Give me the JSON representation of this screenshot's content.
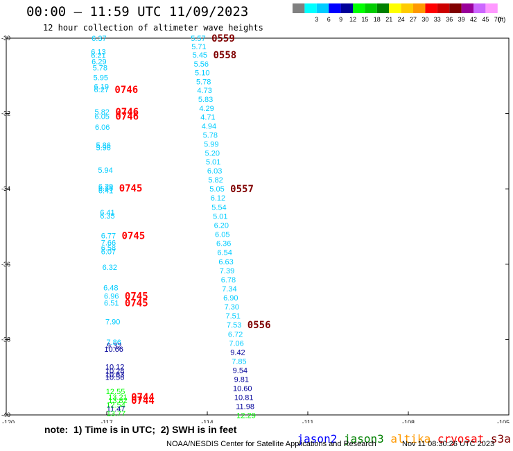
{
  "title": "00:00 – 11:59 UTC 11/09/2023",
  "subtitle": "12 hour collection of altimeter wave heights",
  "legend": {
    "unit": "(ft)",
    "bins": [
      {
        "color": "#808080",
        "label": ""
      },
      {
        "color": "#00ffff",
        "label": "3"
      },
      {
        "color": "#00ccff",
        "label": "6"
      },
      {
        "color": "#0000ff",
        "label": "9"
      },
      {
        "color": "#000099",
        "label": "12"
      },
      {
        "color": "#00ff00",
        "label": "15"
      },
      {
        "color": "#00cc00",
        "label": "18"
      },
      {
        "color": "#008000",
        "label": "21"
      },
      {
        "color": "#ffff00",
        "label": "24"
      },
      {
        "color": "#ffcc00",
        "label": "27"
      },
      {
        "color": "#ff9900",
        "label": "30"
      },
      {
        "color": "#ff0000",
        "label": "33"
      },
      {
        "color": "#cc0000",
        "label": "36"
      },
      {
        "color": "#800000",
        "label": "39"
      },
      {
        "color": "#990099",
        "label": "42"
      },
      {
        "color": "#cc66ff",
        "label": "45"
      },
      {
        "color": "#ff99ff",
        "label": "70"
      }
    ]
  },
  "note": "note:  1) Time is in UTC;  2) SWH is in feet",
  "satellites": [
    {
      "name": "jason2",
      "color": "#0000ff"
    },
    {
      "name": "jason3",
      "color": "#008000"
    },
    {
      "name": "altika",
      "color": "#ff9900"
    },
    {
      "name": "cryosat",
      "color": "#ff0000"
    },
    {
      "name": "s3a",
      "color": "#800000"
    }
  ],
  "credit": "NOAA/NESDIS Center for Satellite Applications and Research",
  "timestamp": "Nov 11 08:30:26 UTC 2023",
  "chart_data": {
    "type": "scatter",
    "xlim": [
      -120,
      -105
    ],
    "ylim": [
      -40,
      -30
    ],
    "x_ticks": [
      "-120",
      "-117",
      "-114",
      "-111",
      "-108",
      "-105"
    ],
    "y_ticks": [
      "-30",
      "-32",
      "-34",
      "-36",
      "-38",
      "-40"
    ],
    "points": [
      {
        "x": -117.23,
        "y": -30.0,
        "label": "6.37",
        "color": "#00ccff"
      },
      {
        "x": -117.25,
        "y": -30.36,
        "label": "6.13",
        "color": "#00ccff"
      },
      {
        "x": -117.25,
        "y": -30.45,
        "label": "6.21",
        "color": "#00ccff"
      },
      {
        "x": -117.23,
        "y": -30.62,
        "label": "6.29",
        "color": "#00ccff"
      },
      {
        "x": -117.2,
        "y": -30.78,
        "label": "5.78",
        "color": "#00ccff"
      },
      {
        "x": -117.18,
        "y": -31.04,
        "label": "5.95",
        "color": "#00ccff"
      },
      {
        "x": -117.16,
        "y": -31.28,
        "label": "6.19",
        "color": "#00ccff"
      },
      {
        "x": -117.16,
        "y": -31.36,
        "label": "6.27",
        "color": "#00ccff"
      },
      {
        "x": -117.14,
        "y": -31.95,
        "label": "5.82",
        "color": "#00ccff"
      },
      {
        "x": -117.14,
        "y": -32.07,
        "label": "6.05",
        "color": "#00ccff"
      },
      {
        "x": -117.13,
        "y": -32.36,
        "label": "6.06",
        "color": "#00ccff"
      },
      {
        "x": -117.1,
        "y": -32.84,
        "label": "5.86",
        "color": "#00ccff"
      },
      {
        "x": -117.1,
        "y": -32.9,
        "label": "5.96",
        "color": "#00ccff"
      },
      {
        "x": -117.04,
        "y": -33.5,
        "label": "5.94",
        "color": "#00ccff"
      },
      {
        "x": -117.03,
        "y": -33.93,
        "label": "6.29",
        "color": "#00ccff"
      },
      {
        "x": -117.03,
        "y": -33.98,
        "label": "6.36",
        "color": "#00ccff"
      },
      {
        "x": -117.03,
        "y": -34.04,
        "label": "6.41",
        "color": "#00ccff"
      },
      {
        "x": -116.98,
        "y": -34.62,
        "label": "6.41",
        "color": "#00ccff"
      },
      {
        "x": -116.98,
        "y": -34.71,
        "label": "6.35",
        "color": "#00ccff"
      },
      {
        "x": -116.95,
        "y": -35.24,
        "label": "6.77",
        "color": "#00ccff"
      },
      {
        "x": -116.95,
        "y": -35.42,
        "label": "7.66",
        "color": "#00ccff"
      },
      {
        "x": -116.95,
        "y": -35.56,
        "label": "6.58",
        "color": "#00ccff"
      },
      {
        "x": -116.95,
        "y": -35.66,
        "label": "6.07",
        "color": "#00ccff"
      },
      {
        "x": -116.91,
        "y": -36.08,
        "label": "6.32",
        "color": "#00ccff"
      },
      {
        "x": -116.88,
        "y": -36.62,
        "label": "6.48",
        "color": "#00ccff"
      },
      {
        "x": -116.86,
        "y": -36.84,
        "label": "6.96",
        "color": "#00ccff"
      },
      {
        "x": -116.86,
        "y": -37.03,
        "label": "6.51",
        "color": "#00ccff"
      },
      {
        "x": -116.82,
        "y": -37.52,
        "label": "7.90",
        "color": "#00ccff"
      },
      {
        "x": -116.79,
        "y": -38.07,
        "label": "7.86",
        "color": "#00ccff"
      },
      {
        "x": -116.78,
        "y": -38.16,
        "label": "9.32",
        "color": "#000099"
      },
      {
        "x": -116.79,
        "y": -38.25,
        "label": "10.66",
        "color": "#000099"
      },
      {
        "x": -116.76,
        "y": -38.72,
        "label": "10.12",
        "color": "#000099"
      },
      {
        "x": -116.76,
        "y": -38.83,
        "label": "10.28",
        "color": "#000099"
      },
      {
        "x": -116.76,
        "y": -38.92,
        "label": "10.63",
        "color": "#000099"
      },
      {
        "x": -116.76,
        "y": -39.0,
        "label": "10.56",
        "color": "#000099"
      },
      {
        "x": -116.74,
        "y": -39.37,
        "label": "12.55",
        "color": "#00ff00"
      },
      {
        "x": -116.73,
        "y": -39.73,
        "label": "12.54",
        "color": "#00ff00"
      },
      {
        "x": -116.73,
        "y": -39.83,
        "label": "11.47",
        "color": "#000099"
      },
      {
        "x": -116.72,
        "y": -39.95,
        "label": "13.77",
        "color": "#00ff00"
      },
      {
        "x": -116.67,
        "y": -39.52,
        "label": "13.21",
        "color": "#00ff00"
      },
      {
        "x": -116.67,
        "y": -39.61,
        "label": "13.82",
        "color": "#00ff00"
      },
      {
        "x": -114.27,
        "y": -30.0,
        "label": "5.57",
        "color": "#00ccff"
      },
      {
        "x": -114.25,
        "y": -30.22,
        "label": "5.71",
        "color": "#00ccff"
      },
      {
        "x": -114.22,
        "y": -30.44,
        "label": "5.45",
        "color": "#00ccff"
      },
      {
        "x": -114.18,
        "y": -30.68,
        "label": "5.56",
        "color": "#00ccff"
      },
      {
        "x": -114.15,
        "y": -30.91,
        "label": "5.10",
        "color": "#00ccff"
      },
      {
        "x": -114.11,
        "y": -31.15,
        "label": "5.78",
        "color": "#00ccff"
      },
      {
        "x": -114.08,
        "y": -31.38,
        "label": "4.73",
        "color": "#00ccff"
      },
      {
        "x": -114.05,
        "y": -31.62,
        "label": "5.83",
        "color": "#00ccff"
      },
      {
        "x": -114.02,
        "y": -31.86,
        "label": "4.29",
        "color": "#00ccff"
      },
      {
        "x": -113.98,
        "y": -32.09,
        "label": "4.71",
        "color": "#00ccff"
      },
      {
        "x": -113.95,
        "y": -32.33,
        "label": "4.94",
        "color": "#00ccff"
      },
      {
        "x": -113.91,
        "y": -32.57,
        "label": "5.78",
        "color": "#00ccff"
      },
      {
        "x": -113.88,
        "y": -32.81,
        "label": "5.99",
        "color": "#00ccff"
      },
      {
        "x": -113.85,
        "y": -33.05,
        "label": "5.20",
        "color": "#00ccff"
      },
      {
        "x": -113.82,
        "y": -33.28,
        "label": "5.01",
        "color": "#00ccff"
      },
      {
        "x": -113.78,
        "y": -33.52,
        "label": "6.03",
        "color": "#00ccff"
      },
      {
        "x": -113.75,
        "y": -33.76,
        "label": "5.82",
        "color": "#00ccff"
      },
      {
        "x": -113.71,
        "y": -34.0,
        "label": "5.05",
        "color": "#00ccff"
      },
      {
        "x": -113.68,
        "y": -34.24,
        "label": "6.12",
        "color": "#00ccff"
      },
      {
        "x": -113.65,
        "y": -34.48,
        "label": "5.54",
        "color": "#00ccff"
      },
      {
        "x": -113.61,
        "y": -34.72,
        "label": "5.01",
        "color": "#00ccff"
      },
      {
        "x": -113.58,
        "y": -34.96,
        "label": "6.20",
        "color": "#00ccff"
      },
      {
        "x": -113.55,
        "y": -35.2,
        "label": "6.05",
        "color": "#00ccff"
      },
      {
        "x": -113.51,
        "y": -35.44,
        "label": "6.36",
        "color": "#00ccff"
      },
      {
        "x": -113.48,
        "y": -35.68,
        "label": "6.54",
        "color": "#00ccff"
      },
      {
        "x": -113.44,
        "y": -35.93,
        "label": "6.63",
        "color": "#00ccff"
      },
      {
        "x": -113.41,
        "y": -36.17,
        "label": "7.39",
        "color": "#00ccff"
      },
      {
        "x": -113.37,
        "y": -36.41,
        "label": "6.78",
        "color": "#00ccff"
      },
      {
        "x": -113.34,
        "y": -36.65,
        "label": "7.34",
        "color": "#00ccff"
      },
      {
        "x": -113.3,
        "y": -36.89,
        "label": "6.90",
        "color": "#00ccff"
      },
      {
        "x": -113.27,
        "y": -37.13,
        "label": "7.30",
        "color": "#00ccff"
      },
      {
        "x": -113.23,
        "y": -37.37,
        "label": "7.51",
        "color": "#00ccff"
      },
      {
        "x": -113.2,
        "y": -37.61,
        "label": "7.53",
        "color": "#00ccff"
      },
      {
        "x": -113.16,
        "y": -37.85,
        "label": "6.72",
        "color": "#00ccff"
      },
      {
        "x": -113.13,
        "y": -38.09,
        "label": "7.06",
        "color": "#00ccff"
      },
      {
        "x": -113.09,
        "y": -38.33,
        "label": "9.42",
        "color": "#000099"
      },
      {
        "x": -113.05,
        "y": -38.57,
        "label": "7.85",
        "color": "#00ccff"
      },
      {
        "x": -113.02,
        "y": -38.81,
        "label": "9.54",
        "color": "#000099"
      },
      {
        "x": -112.98,
        "y": -39.05,
        "label": "9.81",
        "color": "#000099"
      },
      {
        "x": -112.95,
        "y": -39.29,
        "label": "10.60",
        "color": "#000099"
      },
      {
        "x": -112.91,
        "y": -39.53,
        "label": "10.81",
        "color": "#000099"
      },
      {
        "x": -112.87,
        "y": -39.77,
        "label": "11.98",
        "color": "#000099"
      },
      {
        "x": -112.84,
        "y": -40.01,
        "label": "12.29",
        "color": "#00ff00"
      }
    ],
    "pass_times": [
      {
        "x": -114.27,
        "y": -30.0,
        "label": "0559",
        "color": "#800000"
      },
      {
        "x": -114.22,
        "y": -30.44,
        "label": "0558",
        "color": "#800000"
      },
      {
        "x": -113.71,
        "y": -34.0,
        "label": "0557",
        "color": "#800000"
      },
      {
        "x": -113.2,
        "y": -37.61,
        "label": "0556",
        "color": "#800000"
      },
      {
        "x": -117.16,
        "y": -31.36,
        "label": "0746",
        "color": "#ff0000"
      },
      {
        "x": -117.14,
        "y": -31.95,
        "label": "0746",
        "color": "#ff0000"
      },
      {
        "x": -117.14,
        "y": -32.07,
        "label": "0746",
        "color": "#ff0000"
      },
      {
        "x": -117.03,
        "y": -33.98,
        "label": "0745",
        "color": "#ff0000"
      },
      {
        "x": -116.95,
        "y": -35.24,
        "label": "0745",
        "color": "#ff0000"
      },
      {
        "x": -116.86,
        "y": -36.84,
        "label": "0745",
        "color": "#ff0000"
      },
      {
        "x": -116.86,
        "y": -37.03,
        "label": "0745",
        "color": "#ff0000"
      },
      {
        "x": -116.67,
        "y": -39.52,
        "label": "0744",
        "color": "#ff0000"
      },
      {
        "x": -116.67,
        "y": -39.61,
        "label": "0744",
        "color": "#ff0000"
      }
    ]
  }
}
